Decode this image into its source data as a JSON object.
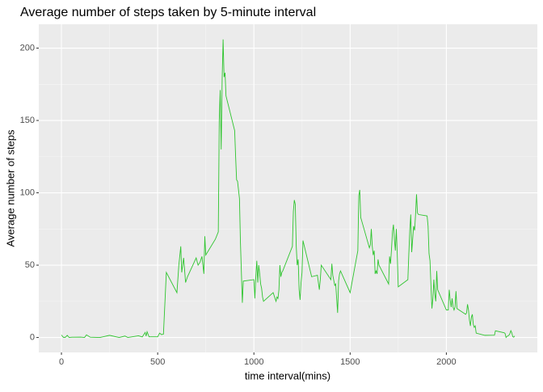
{
  "chart_data": {
    "type": "line",
    "title": "Average number of steps taken by 5-minute interval",
    "xlabel": "time interval(mins)",
    "ylabel": "Average number of steps",
    "x": [
      0,
      10,
      20,
      30,
      40,
      55,
      100,
      120,
      130,
      150,
      200,
      250,
      300,
      330,
      345,
      400,
      420,
      435,
      440,
      445,
      455,
      500,
      510,
      520,
      530,
      545,
      600,
      610,
      620,
      625,
      635,
      645,
      655,
      700,
      710,
      720,
      730,
      740,
      745,
      750,
      800,
      815,
      820,
      825,
      830,
      835,
      840,
      845,
      850,
      855,
      900,
      905,
      910,
      915,
      920,
      925,
      930,
      935,
      940,
      945,
      1000,
      1005,
      1010,
      1015,
      1020,
      1025,
      1030,
      1035,
      1040,
      1045,
      1050,
      1100,
      1115,
      1120,
      1125,
      1130,
      1135,
      1140,
      1145,
      1150,
      1200,
      1205,
      1210,
      1215,
      1220,
      1225,
      1230,
      1235,
      1240,
      1245,
      1250,
      1255,
      1300,
      1330,
      1340,
      1345,
      1350,
      1400,
      1405,
      1410,
      1420,
      1425,
      1430,
      1435,
      1440,
      1445,
      1450,
      1500,
      1540,
      1545,
      1550,
      1555,
      1600,
      1605,
      1610,
      1615,
      1620,
      1625,
      1630,
      1635,
      1640,
      1645,
      1650,
      1700,
      1705,
      1710,
      1715,
      1720,
      1725,
      1730,
      1735,
      1740,
      1745,
      1750,
      1800,
      1805,
      1810,
      1815,
      1820,
      1825,
      1830,
      1835,
      1840,
      1845,
      1850,
      1855,
      1900,
      1905,
      1910,
      1915,
      1920,
      1925,
      1930,
      1935,
      1940,
      1945,
      1950,
      1955,
      2000,
      2005,
      2010,
      2015,
      2020,
      2025,
      2030,
      2035,
      2040,
      2045,
      2050,
      2055,
      2100,
      2105,
      2110,
      2115,
      2120,
      2125,
      2130,
      2135,
      2140,
      2145,
      2150,
      2155,
      2200,
      2250,
      2255,
      2300,
      2305,
      2310,
      2315,
      2320,
      2325,
      2330,
      2335,
      2340,
      2345,
      2350,
      2355
    ],
    "series": [
      {
        "name": "steps",
        "color": "#2ec42e",
        "values": [
          1.7,
          0.1,
          0.1,
          1.5,
          0,
          0.2,
          0.3,
          0,
          1.8,
          0.2,
          0,
          1.5,
          0,
          1,
          0,
          1.2,
          0.4,
          3.5,
          1,
          4,
          0.5,
          0.5,
          3,
          2,
          2.3,
          45,
          31,
          50,
          63,
          45,
          55,
          38,
          42,
          55,
          50,
          52,
          56,
          44,
          70,
          57,
          68,
          73,
          150,
          171,
          130,
          178,
          206,
          180,
          183,
          167,
          143,
          125,
          109,
          108,
          102,
          96,
          66,
          45,
          24,
          39,
          40,
          27,
          42,
          53,
          38,
          50,
          44,
          37,
          34,
          28,
          25,
          31,
          25,
          28,
          27,
          33,
          50,
          42,
          45,
          46,
          63,
          87,
          95,
          92,
          63,
          50,
          54,
          33,
          26,
          38,
          45,
          67,
          42,
          43,
          33,
          40,
          50,
          40,
          51,
          43,
          36,
          37,
          27,
          17,
          39,
          44,
          46,
          31,
          60,
          98,
          102,
          83,
          62,
          64,
          75,
          63,
          57,
          60,
          44,
          46,
          44,
          54,
          50,
          37,
          56,
          51,
          61,
          73,
          78,
          68,
          60,
          75,
          57,
          35,
          40,
          58,
          74,
          85,
          59,
          68,
          77,
          74,
          85,
          99,
          86,
          85,
          84,
          77,
          58,
          53,
          36,
          20,
          27,
          40,
          30,
          25,
          46,
          33,
          19,
          19,
          19,
          33,
          26,
          21,
          27,
          21,
          19,
          21,
          32,
          20,
          16,
          17,
          23,
          19,
          12,
          8,
          14,
          16,
          9,
          7,
          8,
          3,
          1.5,
          1.6,
          4.6,
          3.3,
          2.8,
          0,
          0.8,
          1,
          1.6,
          2.6,
          4.7,
          3.3,
          0.6,
          0.2,
          1.1
        ]
      }
    ],
    "xlim": [
      -117.75,
      2472.75
    ],
    "xticks": [
      0,
      500,
      1000,
      1500,
      2000
    ],
    "ylim": [
      -10.3,
      216.5
    ],
    "yticks": [
      0,
      50,
      100,
      150,
      200
    ],
    "grid": true
  }
}
